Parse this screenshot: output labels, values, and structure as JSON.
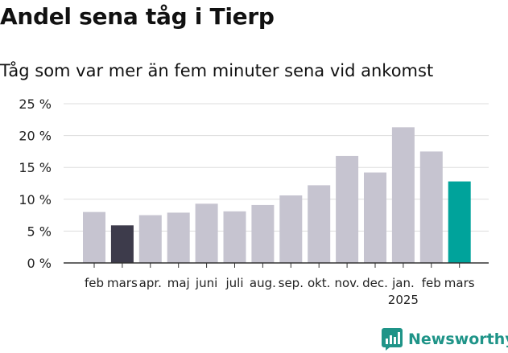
{
  "title": "Andel sena tåg i Tierp",
  "subtitle": "Tåg som var mer än fem minuter sena vid ankomst",
  "brand": "Newsworthy",
  "colors": {
    "bar_default": "#c6c4d0",
    "bar_first_highlight": "#3d3b4b",
    "bar_last_highlight": "#00a39b",
    "grid": "#dddddd",
    "axis": "#333333",
    "brand": "#1f9488"
  },
  "chart_data": {
    "type": "bar",
    "title": "",
    "xlabel": "",
    "ylabel": "",
    "ylim": [
      0,
      25
    ],
    "yticks": [
      "0 %",
      "5 %",
      "10 %",
      "15 %",
      "20 %",
      "25 %"
    ],
    "grid": true,
    "categories": [
      "feb",
      "mars",
      "apr.",
      "maj",
      "juni",
      "juli",
      "aug.",
      "sep.",
      "okt.",
      "nov.",
      "dec.",
      "jan.",
      "feb",
      "mars"
    ],
    "year_labels": [
      {
        "category_index": 11,
        "text": "2025"
      }
    ],
    "values": [
      8.0,
      5.9,
      7.5,
      7.9,
      9.3,
      8.1,
      9.1,
      10.6,
      12.2,
      16.8,
      14.2,
      21.3,
      17.5,
      12.8
    ],
    "highlight": {
      "1": "bar_first_highlight",
      "13": "bar_last_highlight"
    }
  }
}
